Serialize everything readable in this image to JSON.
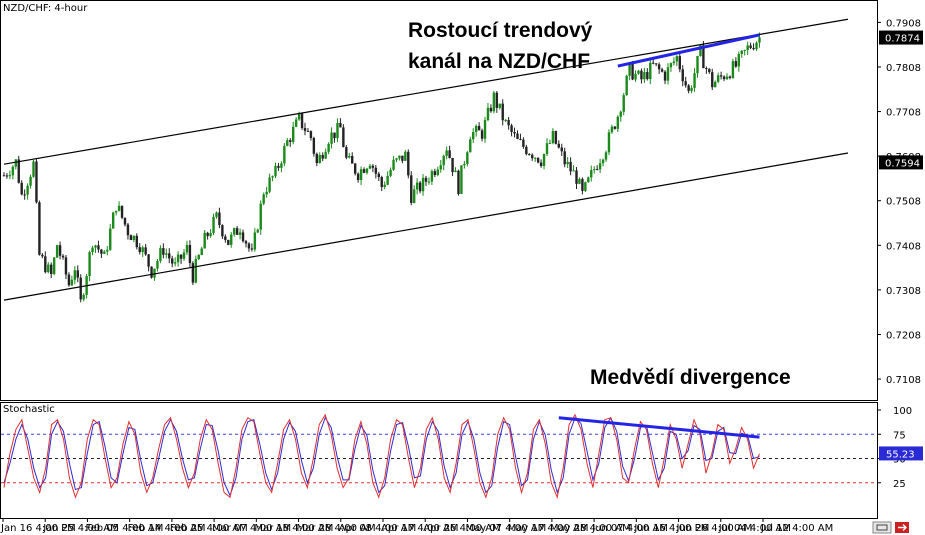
{
  "chart_data": [
    {
      "type": "candlestick",
      "panel_label": "NZD/CHF: 4-hour",
      "annotation_lines": [
        "Rostoucí trendový",
        "kanál na NZD/CHF"
      ],
      "yticks": [
        "0.7908",
        "0.7808",
        "0.7708",
        "0.7608",
        "0.7508",
        "0.7408",
        "0.7308",
        "0.7208",
        "0.7108"
      ],
      "ylim": [
        0.7061,
        0.7956
      ],
      "price_labels": [
        {
          "text": "0.7874",
          "value": 0.7874
        },
        {
          "text": "0.7594",
          "value": 0.7594
        }
      ],
      "xticks": [
        "Jan 16 4:00 PM",
        "Jan 25 4:00 AM",
        "Feb 05 4:00 AM",
        "Feb 14 4:00 AM",
        "Feb 25 4:00 AM",
        "Mar 07 4:00 AM",
        "Mar 18 4:00 AM",
        "Mar 28 4:00 AM",
        "Apr 08 4:00 AM",
        "Apr 17 4:00 AM",
        "Apr 26 4:00 AM",
        "May 07 4:00 AM",
        "May 17 4:00 AM",
        "May 28 4:00 AM",
        "Jun 07 4:00 AM",
        "Jun 16 4:00 PM",
        "Jun 26 4:00 AM",
        "Jul 04 4:00 AM",
        "Jul 12 4:00 AM"
      ],
      "close_path": [
        [
          0,
          0.7565
        ],
        [
          2,
          0.7595
        ],
        [
          3,
          0.752
        ],
        [
          5,
          0.759
        ],
        [
          6,
          0.7385
        ],
        [
          8,
          0.734
        ],
        [
          9,
          0.741
        ],
        [
          11,
          0.732
        ],
        [
          12,
          0.736
        ],
        [
          13,
          0.7278
        ],
        [
          15,
          0.742
        ],
        [
          17,
          0.738
        ],
        [
          19,
          0.75
        ],
        [
          21,
          0.744
        ],
        [
          23,
          0.741
        ],
        [
          25,
          0.735
        ],
        [
          27,
          0.74
        ],
        [
          29,
          0.736
        ],
        [
          31,
          0.74
        ],
        [
          32,
          0.734
        ],
        [
          34,
          0.742
        ],
        [
          36,
          0.747
        ],
        [
          38,
          0.7415
        ],
        [
          40,
          0.745
        ],
        [
          42,
          0.7385
        ],
        [
          44,
          0.753
        ],
        [
          46,
          0.757
        ],
        [
          48,
          0.764
        ],
        [
          50,
          0.769
        ],
        [
          52,
          0.765
        ],
        [
          53,
          0.759
        ],
        [
          55,
          0.765
        ],
        [
          57,
          0.767
        ],
        [
          58,
          0.76
        ],
        [
          60,
          0.757
        ],
        [
          62,
          0.76
        ],
        [
          64,
          0.754
        ],
        [
          66,
          0.759
        ],
        [
          68,
          0.761
        ],
        [
          69,
          0.752
        ],
        [
          71,
          0.7545
        ],
        [
          73,
          0.758
        ],
        [
          75,
          0.763
        ],
        [
          77,
          0.754
        ],
        [
          79,
          0.766
        ],
        [
          81,
          0.766
        ],
        [
          83,
          0.774
        ],
        [
          85,
          0.768
        ],
        [
          87,
          0.764
        ],
        [
          89,
          0.762
        ],
        [
          91,
          0.76
        ],
        [
          93,
          0.765
        ],
        [
          95,
          0.7595
        ],
        [
          97,
          0.756
        ],
        [
          98,
          0.752
        ],
        [
          100,
          0.758
        ],
        [
          102,
          0.763
        ],
        [
          104,
          0.77
        ],
        [
          106,
          0.78
        ],
        [
          108,
          0.778
        ],
        [
          110,
          0.781
        ],
        [
          112,
          0.779
        ],
        [
          114,
          0.783
        ],
        [
          116,
          0.775
        ],
        [
          118,
          0.784
        ],
        [
          120,
          0.777
        ],
        [
          122,
          0.779
        ],
        [
          124,
          0.781
        ],
        [
          126,
          0.785
        ],
        [
          128,
          0.7874
        ]
      ],
      "channel_upper": [
        [
          0,
          0.759
        ],
        [
          143,
          0.7915
        ]
      ],
      "channel_lower": [
        [
          0,
          0.7285
        ],
        [
          143,
          0.7615
        ]
      ],
      "highs_trendline": [
        [
          104,
          0.781
        ],
        [
          128,
          0.788
        ]
      ],
      "colors": {
        "bull": "#1a8a1a",
        "bear": "#222222",
        "channel": "#000000",
        "trend": "#2424e6"
      }
    },
    {
      "type": "line",
      "panel_label": "Stochastic",
      "annotation": "Medvědí divergence",
      "yticks": [
        "100",
        "75",
        "50",
        "25"
      ],
      "ylim": [
        0,
        100
      ],
      "levels": [
        75,
        50,
        25
      ],
      "current_label": {
        "text": "55.23",
        "value": 55.23
      },
      "series": [
        {
          "values": [
            20,
            55,
            80,
            90,
            60,
            30,
            15,
            40,
            85,
            90,
            70,
            30,
            10,
            25,
            70,
            90,
            85,
            50,
            20,
            30,
            65,
            88,
            75,
            35,
            15,
            30,
            60,
            85,
            92,
            70,
            40,
            20,
            35,
            70,
            90,
            80,
            45,
            15,
            10,
            40,
            80,
            92,
            88,
            55,
            25,
            15,
            45,
            80,
            90,
            70,
            35,
            20,
            50,
            85,
            95,
            75,
            40,
            20,
            30,
            70,
            88,
            65,
            25,
            10,
            30,
            70,
            90,
            85,
            50,
            20,
            40,
            80,
            92,
            70,
            30,
            15,
            45,
            85,
            90,
            60,
            25,
            10,
            30,
            75,
            92,
            80,
            40,
            15,
            35,
            80,
            90,
            65,
            25,
            10,
            40,
            85,
            95,
            80,
            45,
            20,
            55,
            90,
            92,
            70,
            30,
            25,
            60,
            88,
            80,
            45,
            20,
            50,
            85,
            70,
            40,
            65,
            90,
            75,
            35,
            55,
            85,
            80,
            45,
            60,
            82,
            70,
            40,
            55
          ]
        },
        {
          "values": [
            25,
            45,
            70,
            85,
            70,
            40,
            20,
            30,
            75,
            88,
            78,
            45,
            18,
            20,
            55,
            85,
            88,
            62,
            30,
            25,
            55,
            82,
            80,
            48,
            22,
            25,
            50,
            78,
            90,
            78,
            50,
            28,
            30,
            60,
            85,
            84,
            58,
            25,
            12,
            30,
            70,
            88,
            90,
            65,
            35,
            18,
            35,
            70,
            87,
            78,
            48,
            25,
            40,
            75,
            92,
            82,
            52,
            28,
            28,
            60,
            84,
            74,
            38,
            15,
            22,
            58,
            85,
            87,
            62,
            30,
            32,
            70,
            88,
            78,
            42,
            20,
            35,
            75,
            88,
            70,
            35,
            15,
            22,
            62,
            88,
            85,
            52,
            22,
            28,
            70,
            88,
            74,
            38,
            15,
            30,
            75,
            92,
            86,
            58,
            28,
            45,
            82,
            92,
            78,
            42,
            27,
            50,
            82,
            84,
            56,
            28,
            40,
            78,
            75,
            50,
            58,
            84,
            80,
            48,
            50,
            78,
            82,
            56,
            55,
            76,
            74,
            50,
            52
          ]
        }
      ],
      "divergence_line": {
        "from": [
          94,
          92
        ],
        "to": [
          128,
          72
        ]
      },
      "colors": {
        "k": "#e03030",
        "d": "#2b2bd6",
        "levels_top": "#3c3ce0",
        "levels_mid": "#222222",
        "levels_low": "#e03030"
      }
    }
  ]
}
